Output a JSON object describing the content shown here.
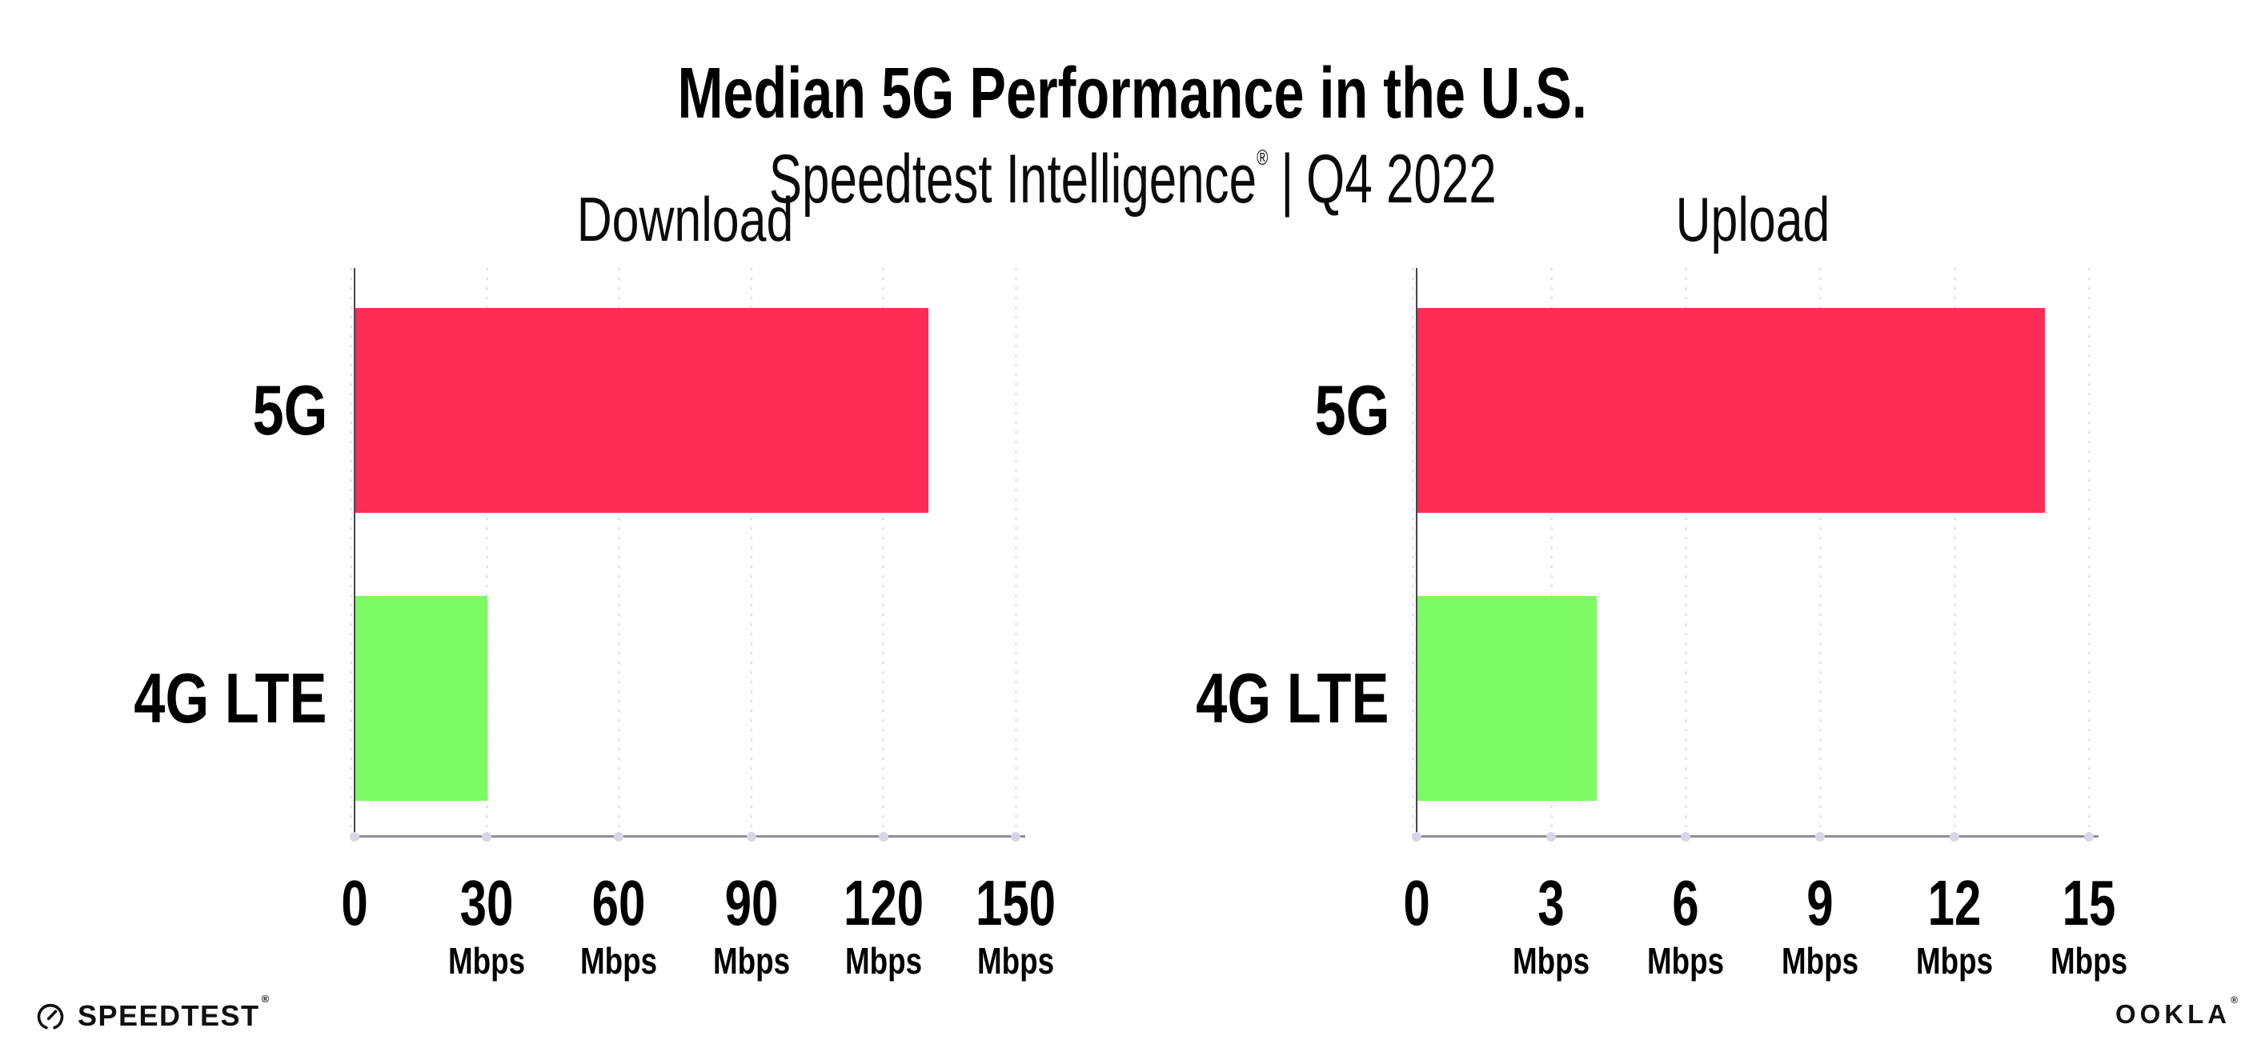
{
  "page": {
    "title": "Median 5G Performance in the U.S.",
    "subtitle": {
      "brand": "Speedtest Intelligence",
      "registered": "®",
      "separator": "|",
      "period": "Q4 2022"
    }
  },
  "chart_data": [
    {
      "type": "bar",
      "orientation": "horizontal",
      "title": "Download",
      "categories": [
        "5G",
        "4G LTE"
      ],
      "values": [
        130,
        30
      ],
      "unit": "Mbps",
      "xlim": [
        0,
        150
      ],
      "ticks": [
        0,
        30,
        60,
        90,
        120,
        150
      ],
      "bar_colors": [
        "#FF2D55",
        "#7DFB64"
      ],
      "grid": "vertical-dotted",
      "legend": "none"
    },
    {
      "type": "bar",
      "orientation": "horizontal",
      "title": "Upload",
      "categories": [
        "5G",
        "4G LTE"
      ],
      "values": [
        14,
        4
      ],
      "unit": "Mbps",
      "xlim": [
        0,
        15
      ],
      "ticks": [
        0,
        3,
        6,
        9,
        12,
        15
      ],
      "bar_colors": [
        "#FF2D55",
        "#7DFB64"
      ],
      "grid": "vertical-dotted",
      "legend": "none"
    }
  ],
  "colors": {
    "bar_5g": "#FF2D55",
    "bar_4g_lte": "#7DFB64",
    "gridline": "#E3E3EE",
    "axis_spine": "#45454D",
    "axis_bottom": "#8E8E99",
    "tick_dot": "#D6D6E4",
    "text": "#000000"
  },
  "footer": {
    "speedtest_label": "SPEEDTEST",
    "speedtest_mark": "®",
    "speedtest_icon": "speedtest-gauge-icon",
    "ookla_label": "OOKLA",
    "ookla_mark": "®"
  }
}
